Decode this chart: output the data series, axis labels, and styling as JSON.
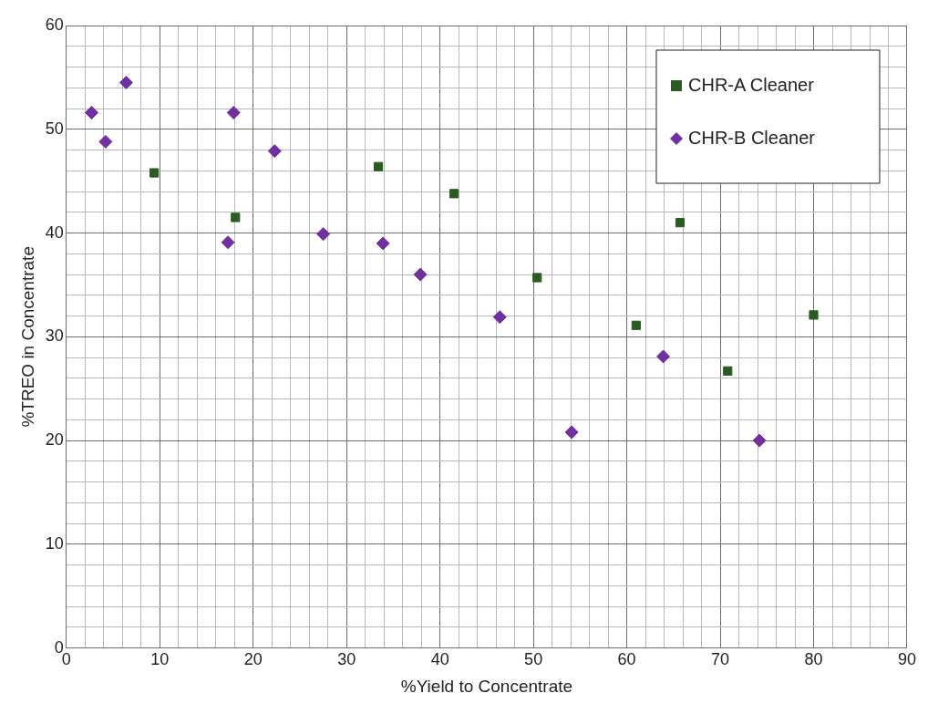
{
  "chart_data": {
    "type": "scatter",
    "xlabel": "%Yield to Concentrate",
    "ylabel": "%TREO in Concentrate",
    "xlim": [
      0,
      90
    ],
    "ylim": [
      0,
      60
    ],
    "xticks": [
      0,
      {
        "value": 2,
        "label": null
      },
      {
        "value": 4,
        "label": null
      },
      {
        "value": 6,
        "label": null
      },
      {
        "value": 8,
        "label": null
      },
      10,
      {
        "value": 12,
        "label": null
      },
      {
        "value": 14,
        "label": null
      },
      {
        "value": 16,
        "label": null
      },
      {
        "value": 18,
        "label": null
      },
      20,
      {
        "value": 22,
        "label": null
      },
      {
        "value": 24,
        "label": null
      },
      {
        "value": 26,
        "label": null
      },
      {
        "value": 28,
        "label": null
      },
      30,
      {
        "value": 32,
        "label": null
      },
      {
        "value": 34,
        "label": null
      },
      {
        "value": 36,
        "label": null
      },
      {
        "value": 38,
        "label": null
      },
      40,
      {
        "value": 42,
        "label": null
      },
      {
        "value": 44,
        "label": null
      },
      {
        "value": 46,
        "label": null
      },
      {
        "value": 48,
        "label": null
      },
      50,
      {
        "value": 52,
        "label": null
      },
      {
        "value": 54,
        "label": null
      },
      {
        "value": 56,
        "label": null
      },
      {
        "value": 58,
        "label": null
      },
      60,
      {
        "value": 62,
        "label": null
      },
      {
        "value": 64,
        "label": null
      },
      {
        "value": 66,
        "label": null
      },
      {
        "value": 68,
        "label": null
      },
      70,
      {
        "value": 72,
        "label": null
      },
      {
        "value": 74,
        "label": null
      },
      {
        "value": 76,
        "label": null
      },
      {
        "value": 78,
        "label": null
      },
      80,
      {
        "value": 82,
        "label": null
      },
      {
        "value": 84,
        "label": null
      },
      {
        "value": 86,
        "label": null
      },
      {
        "value": 88,
        "label": null
      },
      90
    ],
    "yticks": [
      0,
      {
        "value": 2,
        "label": null
      },
      {
        "value": 4,
        "label": null
      },
      {
        "value": 6,
        "label": null
      },
      {
        "value": 8,
        "label": null
      },
      10,
      {
        "value": 12,
        "label": null
      },
      {
        "value": 14,
        "label": null
      },
      {
        "value": 16,
        "label": null
      },
      {
        "value": 18,
        "label": null
      },
      20,
      {
        "value": 22,
        "label": null
      },
      {
        "value": 24,
        "label": null
      },
      {
        "value": 26,
        "label": null
      },
      {
        "value": 28,
        "label": null
      },
      30,
      {
        "value": 32,
        "label": null
      },
      {
        "value": 34,
        "label": null
      },
      {
        "value": 36,
        "label": null
      },
      {
        "value": 38,
        "label": null
      },
      40,
      {
        "value": 42,
        "label": null
      },
      {
        "value": 44,
        "label": null
      },
      {
        "value": 46,
        "label": null
      },
      {
        "value": 48,
        "label": null
      },
      50,
      {
        "value": 52,
        "label": null
      },
      {
        "value": 54,
        "label": null
      },
      {
        "value": 56,
        "label": null
      },
      {
        "value": 58,
        "label": null
      },
      60
    ],
    "grid": true,
    "legend": "top right",
    "series": [
      {
        "name": "CHR-A Cleaner",
        "color": "#2b5a23",
        "marker": "square",
        "x": [
          9.4,
          18.1,
          33.4,
          41.5,
          50.4,
          61.0,
          65.7,
          70.8,
          80.0
        ],
        "values": [
          45.8,
          41.5,
          46.4,
          43.8,
          35.7,
          31.1,
          41.0,
          26.7,
          32.1
        ]
      },
      {
        "name": "CHR-B Cleaner",
        "color": "#7030a0",
        "marker": "diamond",
        "x": [
          2.7,
          4.2,
          6.4,
          17.3,
          17.9,
          22.3,
          27.5,
          33.9,
          37.9,
          46.4,
          54.1,
          63.9,
          74.2
        ],
        "values": [
          51.6,
          48.8,
          54.5,
          39.1,
          51.6,
          47.9,
          39.9,
          39.0,
          36.0,
          31.9,
          20.8,
          28.1,
          20.0
        ]
      }
    ]
  }
}
